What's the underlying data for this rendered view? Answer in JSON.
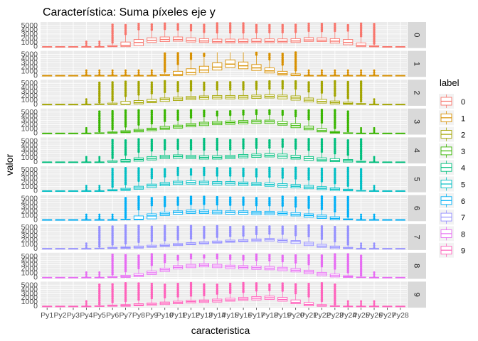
{
  "chart_data": {
    "type": "boxplot",
    "title": "Característica: Suma píxeles eje y",
    "xlabel": "caracteristica",
    "ylabel": "valor",
    "ylim": [
      0,
      5500
    ],
    "y_ticks": [
      "0",
      "1000",
      "2000",
      "3000",
      "4000",
      "5000"
    ],
    "x_ticks": [
      "Py1",
      "Py2",
      "Py3",
      "Py4",
      "Py5",
      "Py6",
      "Py7",
      "Py8",
      "Py9",
      "Py10",
      "Py11",
      "Py12",
      "Py13",
      "Py14",
      "Py15",
      "Py16",
      "Py17",
      "Py18",
      "Py19",
      "Py20",
      "Py21",
      "Py22",
      "Py23",
      "Py24",
      "Py25",
      "Py26",
      "Py27",
      "Py28"
    ],
    "legend": {
      "title": "label",
      "position": "right",
      "entries": [
        "0",
        "1",
        "2",
        "3",
        "4",
        "5",
        "6",
        "7",
        "8",
        "9"
      ],
      "colors": [
        "#F8766D",
        "#D89000",
        "#A3A500",
        "#39B600",
        "#00BF7D",
        "#00BFC4",
        "#00B0F6",
        "#9590FF",
        "#E76BF3",
        "#FF62BC"
      ]
    },
    "facets": [
      {
        "label": "0",
        "color": "#F8766D",
        "medians": [
          0,
          0,
          0,
          0,
          0,
          50,
          250,
          1000,
          1500,
          1700,
          1700,
          1500,
          1350,
          1200,
          1200,
          1200,
          1250,
          1250,
          1250,
          1350,
          1600,
          1550,
          1300,
          1000,
          250,
          0,
          0,
          0
        ],
        "q1": [
          0,
          0,
          0,
          0,
          0,
          0,
          0,
          250,
          1000,
          1200,
          1300,
          1100,
          1000,
          900,
          900,
          900,
          950,
          950,
          950,
          1000,
          1250,
          1200,
          850,
          450,
          0,
          0,
          0,
          0
        ],
        "q3": [
          0,
          0,
          0,
          0,
          0,
          300,
          1100,
          1700,
          2100,
          2300,
          2300,
          2100,
          1900,
          1800,
          1800,
          1800,
          1850,
          1850,
          1850,
          1900,
          2150,
          2100,
          1900,
          1700,
          900,
          200,
          0,
          0
        ]
      },
      {
        "label": "1",
        "color": "#D89000",
        "medians": [
          0,
          0,
          0,
          0,
          0,
          0,
          0,
          0,
          0,
          0,
          200,
          700,
          1300,
          2000,
          2700,
          2300,
          1800,
          1100,
          400,
          0,
          0,
          0,
          0,
          0,
          0,
          0,
          0,
          0
        ],
        "q1": [
          0,
          0,
          0,
          0,
          0,
          0,
          0,
          0,
          0,
          0,
          0,
          200,
          700,
          1300,
          1900,
          1600,
          1200,
          600,
          100,
          0,
          0,
          0,
          0,
          0,
          0,
          0,
          0,
          0
        ],
        "q3": [
          0,
          0,
          0,
          0,
          0,
          0,
          0,
          0,
          0,
          300,
          1000,
          1600,
          2200,
          3000,
          3700,
          3200,
          2600,
          1800,
          1000,
          400,
          0,
          0,
          0,
          0,
          0,
          0,
          0,
          0
        ]
      },
      {
        "label": "2",
        "color": "#A3A500",
        "medians": [
          0,
          0,
          0,
          0,
          0,
          0,
          0,
          400,
          700,
          1100,
          1300,
          1500,
          1600,
          1700,
          1700,
          1700,
          1800,
          1900,
          1800,
          1500,
          1000,
          700,
          400,
          200,
          50,
          0,
          0,
          0
        ],
        "q1": [
          0,
          0,
          0,
          0,
          0,
          0,
          0,
          100,
          400,
          700,
          900,
          1100,
          1200,
          1300,
          1300,
          1300,
          1400,
          1500,
          1300,
          1000,
          600,
          300,
          100,
          0,
          0,
          0,
          0,
          0
        ],
        "q3": [
          0,
          0,
          0,
          0,
          100,
          300,
          700,
          900,
          1200,
          1500,
          1700,
          1900,
          2000,
          2100,
          2100,
          2100,
          2200,
          2300,
          2200,
          2000,
          1500,
          1200,
          800,
          500,
          200,
          0,
          0,
          0
        ]
      },
      {
        "label": "3",
        "color": "#39B600",
        "medians": [
          0,
          0,
          0,
          0,
          0,
          100,
          300,
          600,
          900,
          1200,
          1500,
          1900,
          2200,
          2400,
          2500,
          2600,
          2700,
          2700,
          2300,
          1800,
          1200,
          600,
          200,
          0,
          0,
          0,
          0,
          0
        ],
        "q1": [
          0,
          0,
          0,
          0,
          0,
          0,
          100,
          300,
          600,
          900,
          1200,
          1500,
          1800,
          2000,
          2100,
          2200,
          2300,
          2300,
          1900,
          1300,
          800,
          300,
          0,
          0,
          0,
          0,
          0,
          0
        ],
        "q3": [
          0,
          0,
          0,
          0,
          100,
          300,
          600,
          900,
          1200,
          1600,
          1900,
          2300,
          2600,
          2800,
          2900,
          3000,
          3100,
          3100,
          2800,
          2300,
          1700,
          1100,
          400,
          100,
          0,
          0,
          0,
          0
        ]
      },
      {
        "label": "4",
        "color": "#00BF7D",
        "medians": [
          0,
          0,
          0,
          0,
          0,
          0,
          200,
          600,
          900,
          1200,
          1300,
          1200,
          1100,
          1100,
          1200,
          1400,
          1500,
          1600,
          1400,
          1100,
          800,
          500,
          400,
          300,
          0,
          0,
          0,
          0
        ],
        "q1": [
          0,
          0,
          0,
          0,
          0,
          0,
          0,
          200,
          500,
          800,
          900,
          800,
          700,
          700,
          800,
          1000,
          1100,
          1200,
          900,
          700,
          400,
          200,
          100,
          0,
          0,
          0,
          0,
          0
        ],
        "q3": [
          0,
          0,
          0,
          0,
          0,
          300,
          600,
          1000,
          1300,
          1600,
          1700,
          1600,
          1500,
          1500,
          1600,
          1800,
          1900,
          2000,
          1900,
          1600,
          1300,
          1000,
          800,
          600,
          200,
          0,
          0,
          0
        ]
      },
      {
        "label": "5",
        "color": "#00BFC4",
        "medians": [
          0,
          0,
          0,
          0,
          0,
          100,
          300,
          700,
          1200,
          1600,
          1900,
          2000,
          1900,
          1800,
          1800,
          1700,
          1600,
          1500,
          1300,
          1100,
          900,
          600,
          400,
          200,
          0,
          0,
          0,
          0
        ],
        "q1": [
          0,
          0,
          0,
          0,
          0,
          0,
          100,
          400,
          800,
          1200,
          1500,
          1600,
          1500,
          1400,
          1400,
          1300,
          1200,
          1100,
          900,
          700,
          500,
          300,
          100,
          0,
          0,
          0,
          0,
          0
        ],
        "q3": [
          0,
          0,
          0,
          0,
          0,
          300,
          600,
          1100,
          1600,
          2000,
          2300,
          2400,
          2300,
          2200,
          2200,
          2100,
          2000,
          1900,
          1700,
          1500,
          1300,
          1000,
          700,
          400,
          100,
          0,
          0,
          0
        ]
      },
      {
        "label": "6",
        "color": "#00B0F6",
        "medians": [
          0,
          0,
          0,
          0,
          0,
          0,
          0,
          100,
          900,
          1400,
          1700,
          1900,
          1900,
          1800,
          1700,
          1700,
          1600,
          1600,
          1500,
          1300,
          1000,
          700,
          300,
          0,
          0,
          0,
          0,
          0
        ],
        "q1": [
          0,
          0,
          0,
          0,
          0,
          0,
          0,
          0,
          200,
          1000,
          1300,
          1500,
          1500,
          1400,
          1300,
          1300,
          1200,
          1200,
          1100,
          900,
          600,
          300,
          0,
          0,
          0,
          0,
          0,
          0
        ],
        "q3": [
          0,
          0,
          0,
          0,
          0,
          0,
          100,
          900,
          1400,
          1800,
          2100,
          2300,
          2300,
          2200,
          2100,
          2100,
          2000,
          2000,
          1900,
          1700,
          1400,
          1100,
          700,
          200,
          0,
          0,
          0,
          0
        ]
      },
      {
        "label": "7",
        "color": "#9590FF",
        "medians": [
          0,
          0,
          0,
          0,
          0,
          100,
          200,
          300,
          500,
          700,
          900,
          1100,
          1300,
          1500,
          1700,
          1800,
          2000,
          2100,
          1900,
          1600,
          1100,
          600,
          300,
          100,
          0,
          0,
          0,
          0
        ],
        "q1": [
          0,
          0,
          0,
          0,
          0,
          0,
          0,
          100,
          300,
          500,
          700,
          900,
          1100,
          1300,
          1500,
          1600,
          1700,
          1800,
          1500,
          1200,
          700,
          300,
          0,
          0,
          0,
          0,
          0,
          0
        ],
        "q3": [
          0,
          0,
          0,
          0,
          100,
          300,
          400,
          600,
          800,
          1000,
          1200,
          1400,
          1600,
          1800,
          2000,
          2100,
          2300,
          2400,
          2200,
          1900,
          1500,
          1000,
          600,
          300,
          0,
          0,
          0,
          0
        ]
      },
      {
        "label": "8",
        "color": "#E76BF3",
        "medians": [
          0,
          0,
          0,
          0,
          0,
          0,
          200,
          500,
          1100,
          1800,
          2400,
          2700,
          2900,
          2700,
          2500,
          2400,
          2300,
          2200,
          2000,
          1700,
          1300,
          800,
          400,
          200,
          0,
          0,
          0,
          0
        ],
        "q1": [
          0,
          0,
          0,
          0,
          0,
          0,
          0,
          200,
          700,
          1400,
          2000,
          2300,
          2500,
          2300,
          2100,
          2000,
          1900,
          1800,
          1600,
          1300,
          900,
          400,
          100,
          0,
          0,
          0,
          0,
          0
        ],
        "q3": [
          0,
          0,
          0,
          0,
          0,
          200,
          500,
          900,
          1500,
          2200,
          2800,
          3100,
          3300,
          3100,
          2900,
          2800,
          2700,
          2600,
          2400,
          2100,
          1700,
          1200,
          800,
          400,
          100,
          0,
          0,
          0
        ]
      },
      {
        "label": "9",
        "color": "#FF62BC",
        "medians": [
          0,
          0,
          0,
          0,
          0,
          100,
          200,
          300,
          500,
          700,
          900,
          1100,
          1200,
          1300,
          1500,
          1700,
          1900,
          2000,
          1600,
          900,
          400,
          100,
          0,
          0,
          0,
          0,
          0,
          0
        ],
        "q1": [
          0,
          0,
          0,
          0,
          0,
          0,
          0,
          100,
          200,
          400,
          600,
          800,
          900,
          1000,
          1200,
          1400,
          1500,
          1600,
          1200,
          600,
          100,
          0,
          0,
          0,
          0,
          0,
          0,
          0
        ],
        "q3": [
          0,
          0,
          0,
          0,
          100,
          300,
          400,
          600,
          800,
          1000,
          1200,
          1400,
          1500,
          1700,
          1900,
          2100,
          2300,
          2400,
          2100,
          1500,
          900,
          400,
          100,
          0,
          0,
          0,
          0,
          0
        ]
      }
    ]
  }
}
